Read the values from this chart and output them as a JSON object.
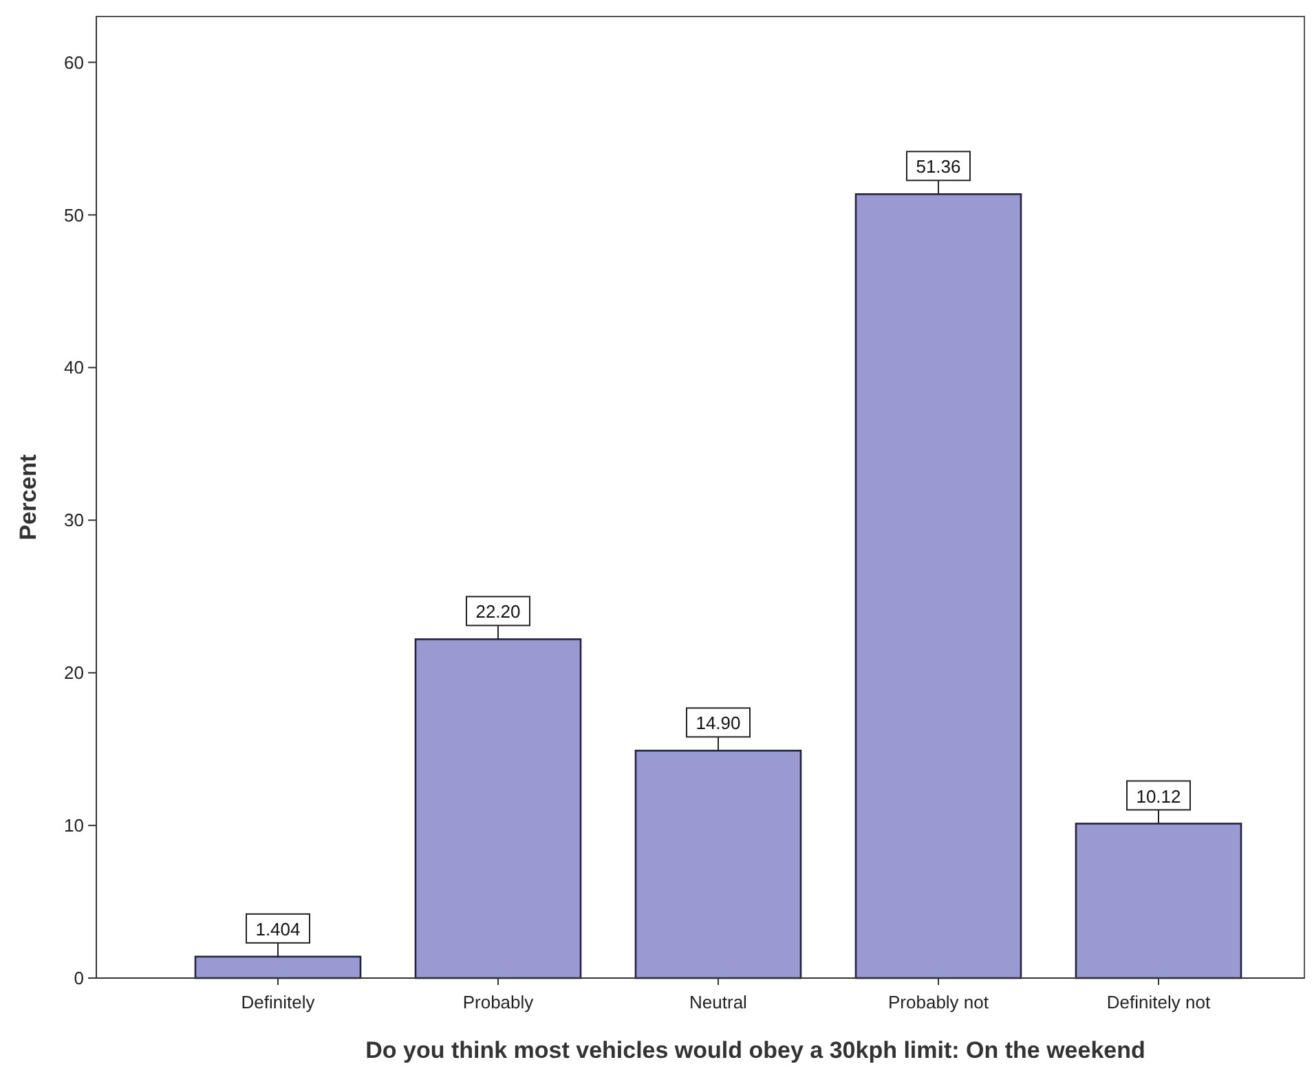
{
  "chart_data": {
    "type": "bar",
    "xlabel": "Do you think most vehicles would obey a 30kph limit: On the weekend",
    "ylabel": "Percent",
    "categories": [
      "Definitely",
      "Probably",
      "Neutral",
      "Probably not",
      "Definitely not"
    ],
    "values": [
      1.404,
      22.2,
      14.9,
      51.36,
      10.12
    ],
    "value_labels": [
      "1.404",
      "22.20",
      "14.90",
      "51.36",
      "10.12"
    ],
    "color": "#9a9ad2",
    "ylim": [
      0,
      63
    ],
    "yticks": [
      0,
      10,
      20,
      30,
      40,
      50,
      60
    ],
    "grid": false
  }
}
